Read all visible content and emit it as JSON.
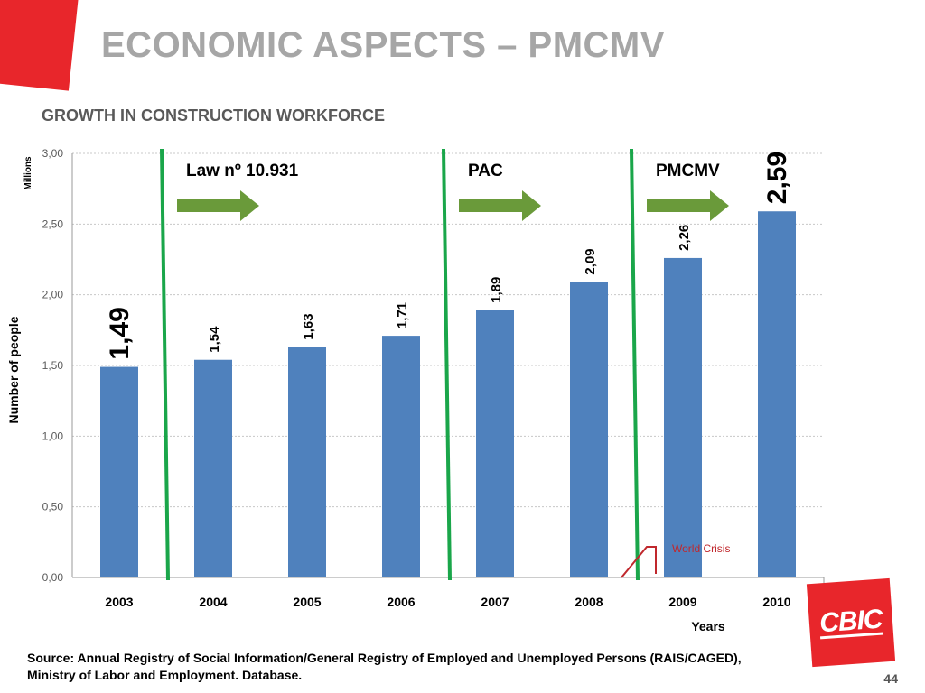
{
  "slide": {
    "title": "ECONOMIC ASPECTS – PMCMV",
    "subtitle": "GROWTH IN CONSTRUCTION WORKFORCE",
    "source": "Source: Annual Registry of Social Information/General Registry of Employed and Unemployed Persons (RAIS/CAGED), Ministry of Labor and Employment. Database.",
    "page_number": "44",
    "logo_text": "CBIC"
  },
  "colors": {
    "accent_red": "#e8262b",
    "bar": "#4f81bd",
    "milestone_line": "#1aa64a",
    "arrow": "#6a9a3a",
    "crisis": "#c0282d"
  },
  "chart_data": {
    "type": "bar",
    "categories": [
      "2003",
      "2004",
      "2005",
      "2006",
      "2007",
      "2008",
      "2009",
      "2010"
    ],
    "values": [
      1.49,
      1.54,
      1.63,
      1.71,
      1.89,
      2.09,
      2.26,
      2.59
    ],
    "value_labels": [
      "1,49",
      "1,54",
      "1,63",
      "1,71",
      "1,89",
      "2,09",
      "2,26",
      "2,59"
    ],
    "ylim": [
      0,
      3.0
    ],
    "yticks": [
      0,
      0.5,
      1.0,
      1.5,
      2.0,
      2.5,
      3.0
    ],
    "ytick_labels": [
      "0,00",
      "0,50",
      "1,00",
      "1,50",
      "2,00",
      "2,50",
      "3,00"
    ],
    "unit_label": "Millions",
    "ylabel": "Number of people",
    "xlabel": "Years",
    "grid": true,
    "annotations": [
      {
        "text": "Law nº 10.931",
        "after_category": "2003"
      },
      {
        "text": "PAC",
        "after_category": "2006"
      },
      {
        "text": "PMCMV",
        "after_category": "2008"
      },
      {
        "text": "World Crisis",
        "near_category": "2009"
      }
    ]
  }
}
